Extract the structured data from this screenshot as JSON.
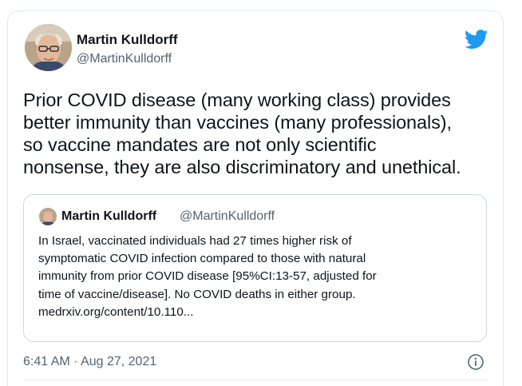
{
  "author": {
    "name": "Martin Kulldorff",
    "handle": "@MartinKulldorff"
  },
  "tweet": {
    "lines": [
      "Prior COVID disease (many working class) provides",
      "better immunity than vaccines (many professionals),",
      "so vaccine mandates are not only scientific",
      "nonsense, they are also discriminatory and unethical."
    ]
  },
  "quoted_tweet": {
    "name": "Martin Kulldorff",
    "handle": "@MartinKulldorff",
    "lines": [
      "In Israel, vaccinated individuals had 27 times higher risk of",
      "symptomatic COVID infection compared to those with natural",
      "immunity from prior COVID disease [95%CI:13-57, adjusted for",
      "time of vaccine/disease]. No COVID deaths in either group.",
      "medrxiv.org/content/10.110..."
    ]
  },
  "timestamp": "6:41 AM · Aug 27, 2021",
  "icons": {
    "brand": "twitter-bird-icon",
    "info": "info-icon"
  },
  "colors": {
    "brand_blue": "#1d9bf0",
    "text": "#0f1419",
    "secondary": "#536471",
    "border": "#cfd9de"
  }
}
